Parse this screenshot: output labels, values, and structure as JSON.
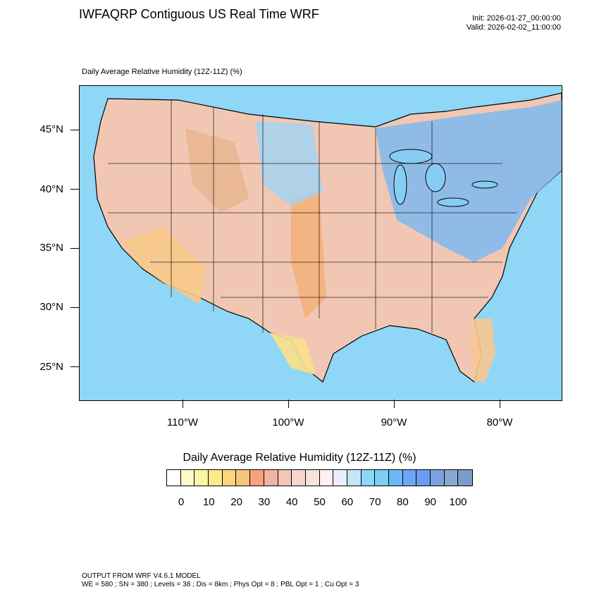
{
  "header": {
    "title": "IWFAQRP Contiguous US Real Time WRF",
    "init": "Init: 2026-01-27_00:00:00",
    "valid": "Valid: 2026-02-02_11:00:00"
  },
  "map": {
    "subtitle": "Daily Average Relative Humidity (12Z-11Z)   (%)",
    "lat_labels": [
      "45°N",
      "40°N",
      "35°N",
      "30°N",
      "25°N"
    ],
    "lon_labels": [
      "110°W",
      "100°W",
      "90°W",
      "80°W"
    ]
  },
  "colorbar": {
    "title": "Daily Average Relative Humidity (12Z-11Z)  (%)",
    "colors": [
      "#ffffff",
      "#fefbc8",
      "#fdf5a6",
      "#fdea8a",
      "#fbd67a",
      "#f9c37a",
      "#f6a27d",
      "#f4b3a0",
      "#f3c6b8",
      "#f6d6cc",
      "#f8e3dc",
      "#fdf0ee",
      "#e9eefe",
      "#c6e3fc",
      "#8bd8f6",
      "#7ccdf7",
      "#6ab9f4",
      "#6ea6f5",
      "#6b9cf0",
      "#7aa3dd",
      "#8aa9cf",
      "#7a9cc8"
    ],
    "labels": [
      "0",
      "10",
      "20",
      "30",
      "40",
      "50",
      "60",
      "70",
      "80",
      "90",
      "100"
    ]
  },
  "footer": {
    "line1": "OUTPUT FROM WRF V4.6.1 MODEL",
    "line2": "WE = 580 ; SN = 380 ; Levels = 38 ; Dis = 8km ; Phys Opt = 8 ; PBL Opt = 1 ; Cu Opt = 3"
  }
}
